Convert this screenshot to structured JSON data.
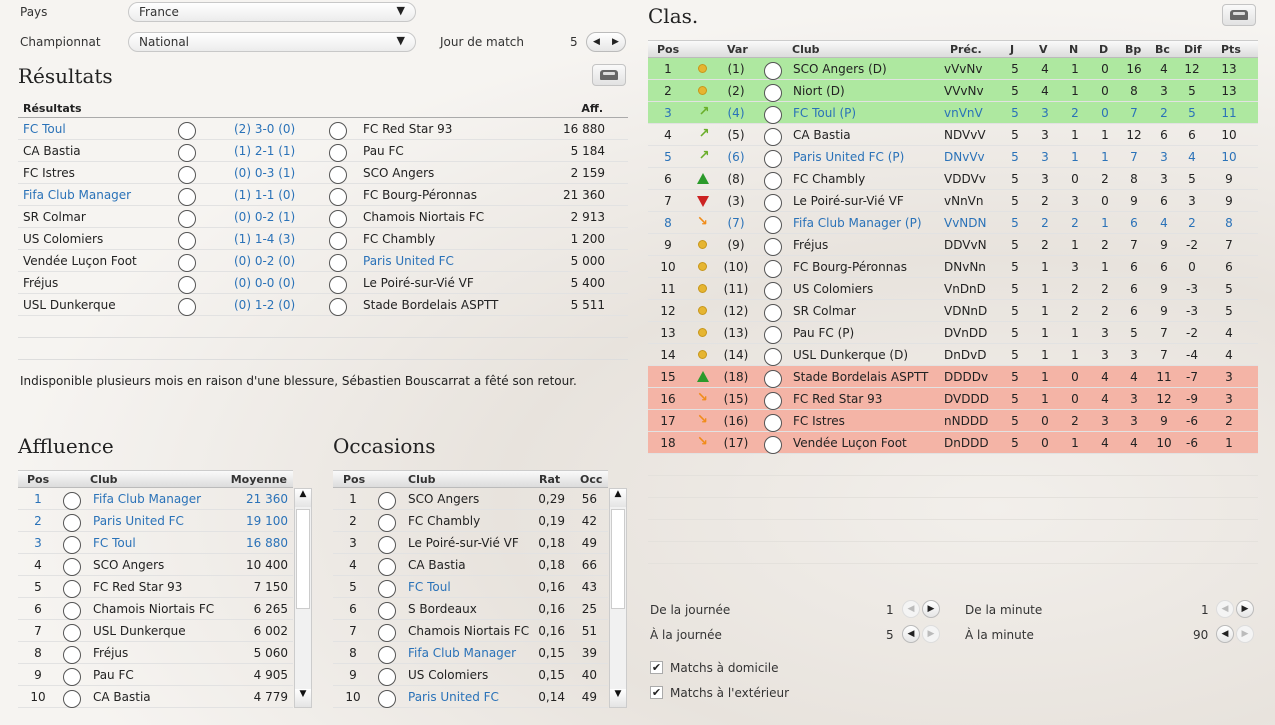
{
  "filters": {
    "country_label": "Pays",
    "country_value": "France",
    "league_label": "Championnat",
    "league_value": "National",
    "matchday_label": "Jour de match",
    "matchday_value": "5"
  },
  "results": {
    "title": "Résultats",
    "header_label": "Résultats",
    "header_att": "Aff.",
    "rows": [
      {
        "home": "FC Toul",
        "home_link": true,
        "score": "(2) 3-0 (0)",
        "away": "FC Red Star 93",
        "away_link": false,
        "att": "16 880"
      },
      {
        "home": "CA Bastia",
        "home_link": false,
        "score": "(1) 2-1 (1)",
        "away": "Pau FC",
        "away_link": false,
        "att": "5 184"
      },
      {
        "home": "FC Istres",
        "home_link": false,
        "score": "(0) 0-3 (1)",
        "away": "SCO Angers",
        "away_link": false,
        "att": "2 159"
      },
      {
        "home": "Fifa Club Manager",
        "home_link": true,
        "score": "(1) 1-1 (0)",
        "away": "FC Bourg-Péronnas",
        "away_link": false,
        "att": "21 360"
      },
      {
        "home": "SR Colmar",
        "home_link": false,
        "score": "(0) 0-2 (1)",
        "away": "Chamois Niortais FC",
        "away_link": false,
        "att": "2 913"
      },
      {
        "home": "US Colomiers",
        "home_link": false,
        "score": "(1) 1-4 (3)",
        "away": "FC Chambly",
        "away_link": false,
        "att": "1 200"
      },
      {
        "home": "Vendée Luçon Foot",
        "home_link": false,
        "score": "(0) 0-2 (0)",
        "away": "Paris United FC",
        "away_link": true,
        "att": "5 000"
      },
      {
        "home": "Fréjus",
        "home_link": false,
        "score": "(0) 0-0 (0)",
        "away": "Le Poiré-sur-Vié VF",
        "away_link": false,
        "att": "5 400"
      },
      {
        "home": "USL Dunkerque",
        "home_link": false,
        "score": "(0) 1-2 (0)",
        "away": "Stade Bordelais ASPTT",
        "away_link": false,
        "att": "5 511"
      }
    ]
  },
  "news": "Indisponible plusieurs mois en raison d'une blessure, Sébastien Bouscarrat a fêté son retour.",
  "attendance": {
    "title": "Affluence",
    "headers": {
      "pos": "Pos",
      "club": "Club",
      "avg": "Moyenne"
    },
    "rows": [
      {
        "pos": "1",
        "club": "Fifa Club Manager",
        "val": "21 360",
        "link": true
      },
      {
        "pos": "2",
        "club": "Paris United FC",
        "val": "19 100",
        "link": true
      },
      {
        "pos": "3",
        "club": "FC Toul",
        "val": "16 880",
        "link": true
      },
      {
        "pos": "4",
        "club": "SCO Angers",
        "val": "10 400",
        "link": false
      },
      {
        "pos": "5",
        "club": "FC Red Star 93",
        "val": "7 150",
        "link": false
      },
      {
        "pos": "6",
        "club": "Chamois Niortais FC",
        "val": "6 265",
        "link": false
      },
      {
        "pos": "7",
        "club": "USL Dunkerque",
        "val": "6 002",
        "link": false
      },
      {
        "pos": "8",
        "club": "Fréjus",
        "val": "5 060",
        "link": false
      },
      {
        "pos": "9",
        "club": "Pau FC",
        "val": "4 905",
        "link": false
      },
      {
        "pos": "10",
        "club": "CA Bastia",
        "val": "4 779",
        "link": false
      }
    ]
  },
  "chances": {
    "title": "Occasions",
    "headers": {
      "pos": "Pos",
      "club": "Club",
      "rat": "Rat",
      "occ": "Occ"
    },
    "rows": [
      {
        "pos": "1",
        "club": "SCO Angers",
        "rat": "0,29",
        "occ": "56",
        "link": false
      },
      {
        "pos": "2",
        "club": "FC Chambly",
        "rat": "0,19",
        "occ": "42",
        "link": false
      },
      {
        "pos": "3",
        "club": "Le Poiré-sur-Vié VF",
        "rat": "0,18",
        "occ": "49",
        "link": false
      },
      {
        "pos": "4",
        "club": "CA Bastia",
        "rat": "0,18",
        "occ": "66",
        "link": false
      },
      {
        "pos": "5",
        "club": "FC Toul",
        "rat": "0,16",
        "occ": "43",
        "link": true
      },
      {
        "pos": "6",
        "club": "S Bordeaux",
        "rat": "0,16",
        "occ": "25",
        "link": false
      },
      {
        "pos": "7",
        "club": "Chamois Niortais FC",
        "rat": "0,16",
        "occ": "51",
        "link": false
      },
      {
        "pos": "8",
        "club": "Fifa Club Manager",
        "rat": "0,15",
        "occ": "39",
        "link": true
      },
      {
        "pos": "9",
        "club": "US Colomiers",
        "rat": "0,15",
        "occ": "40",
        "link": false
      },
      {
        "pos": "10",
        "club": "Paris United FC",
        "rat": "0,14",
        "occ": "49",
        "link": true
      }
    ]
  },
  "standings": {
    "title": "Clas.",
    "headers": {
      "pos": "Pos",
      "var": "Var",
      "club": "Club",
      "prec": "Préc.",
      "j": "J",
      "v": "V",
      "n": "N",
      "d": "D",
      "bp": "Bp",
      "bc": "Bc",
      "dif": "Dif",
      "pts": "Pts"
    },
    "colors": {
      "promo": "#aee8a0",
      "releg": "#f4b4a6",
      "link": "#2a72b8"
    },
    "rows": [
      {
        "pos": "1",
        "trend": "dot",
        "var": "(1)",
        "club": "SCO Angers  (D)",
        "prec": "vVvNv",
        "j": "5",
        "v": "4",
        "n": "1",
        "d": "0",
        "bp": "16",
        "bc": "4",
        "dif": "12",
        "pts": "13",
        "zone": "promo",
        "link": false
      },
      {
        "pos": "2",
        "trend": "dot",
        "var": "(2)",
        "club": "Niort  (D)",
        "prec": "VVvNv",
        "j": "5",
        "v": "4",
        "n": "1",
        "d": "0",
        "bp": "8",
        "bc": "3",
        "dif": "5",
        "pts": "13",
        "zone": "promo",
        "link": false
      },
      {
        "pos": "3",
        "trend": "diag-up",
        "var": "(4)",
        "club": "FC Toul  (P)",
        "prec": "vnVnV",
        "j": "5",
        "v": "3",
        "n": "2",
        "d": "0",
        "bp": "7",
        "bc": "2",
        "dif": "5",
        "pts": "11",
        "zone": "promo",
        "link": true
      },
      {
        "pos": "4",
        "trend": "diag-up",
        "var": "(5)",
        "club": "CA Bastia",
        "prec": "NDVvV",
        "j": "5",
        "v": "3",
        "n": "1",
        "d": "1",
        "bp": "12",
        "bc": "6",
        "dif": "6",
        "pts": "10",
        "zone": "",
        "link": false
      },
      {
        "pos": "5",
        "trend": "diag-up",
        "var": "(6)",
        "club": "Paris United FC  (P)",
        "prec": "DNvVv",
        "j": "5",
        "v": "3",
        "n": "1",
        "d": "1",
        "bp": "7",
        "bc": "3",
        "dif": "4",
        "pts": "10",
        "zone": "",
        "link": true
      },
      {
        "pos": "6",
        "trend": "up",
        "var": "(8)",
        "club": "FC Chambly",
        "prec": "VDDVv",
        "j": "5",
        "v": "3",
        "n": "0",
        "d": "2",
        "bp": "8",
        "bc": "3",
        "dif": "5",
        "pts": "9",
        "zone": "",
        "link": false
      },
      {
        "pos": "7",
        "trend": "down",
        "var": "(3)",
        "club": "Le Poiré-sur-Vié VF",
        "prec": "vNnVn",
        "j": "5",
        "v": "2",
        "n": "3",
        "d": "0",
        "bp": "9",
        "bc": "6",
        "dif": "3",
        "pts": "9",
        "zone": "",
        "link": false
      },
      {
        "pos": "8",
        "trend": "diag-down",
        "var": "(7)",
        "club": "Fifa Club Manager  (P)",
        "prec": "VvNDN",
        "j": "5",
        "v": "2",
        "n": "2",
        "d": "1",
        "bp": "6",
        "bc": "4",
        "dif": "2",
        "pts": "8",
        "zone": "",
        "link": true
      },
      {
        "pos": "9",
        "trend": "dot",
        "var": "(9)",
        "club": "Fréjus",
        "prec": "DDVvN",
        "j": "5",
        "v": "2",
        "n": "1",
        "d": "2",
        "bp": "7",
        "bc": "9",
        "dif": "-2",
        "pts": "7",
        "zone": "",
        "link": false
      },
      {
        "pos": "10",
        "trend": "dot",
        "var": "(10)",
        "club": "FC Bourg-Péronnas",
        "prec": "DNvNn",
        "j": "5",
        "v": "1",
        "n": "3",
        "d": "1",
        "bp": "6",
        "bc": "6",
        "dif": "0",
        "pts": "6",
        "zone": "",
        "link": false
      },
      {
        "pos": "11",
        "trend": "dot",
        "var": "(11)",
        "club": "US Colomiers",
        "prec": "VnDnD",
        "j": "5",
        "v": "1",
        "n": "2",
        "d": "2",
        "bp": "6",
        "bc": "9",
        "dif": "-3",
        "pts": "5",
        "zone": "",
        "link": false
      },
      {
        "pos": "12",
        "trend": "dot",
        "var": "(12)",
        "club": "SR Colmar",
        "prec": "VDNnD",
        "j": "5",
        "v": "1",
        "n": "2",
        "d": "2",
        "bp": "6",
        "bc": "9",
        "dif": "-3",
        "pts": "5",
        "zone": "",
        "link": false
      },
      {
        "pos": "13",
        "trend": "dot",
        "var": "(13)",
        "club": "Pau FC  (P)",
        "prec": "DVnDD",
        "j": "5",
        "v": "1",
        "n": "1",
        "d": "3",
        "bp": "5",
        "bc": "7",
        "dif": "-2",
        "pts": "4",
        "zone": "",
        "link": false
      },
      {
        "pos": "14",
        "trend": "dot",
        "var": "(14)",
        "club": "USL Dunkerque  (D)",
        "prec": "DnDvD",
        "j": "5",
        "v": "1",
        "n": "1",
        "d": "3",
        "bp": "3",
        "bc": "7",
        "dif": "-4",
        "pts": "4",
        "zone": "",
        "link": false
      },
      {
        "pos": "15",
        "trend": "up",
        "var": "(18)",
        "club": "Stade Bordelais ASPTT",
        "prec": "DDDDv",
        "j": "5",
        "v": "1",
        "n": "0",
        "d": "4",
        "bp": "4",
        "bc": "11",
        "dif": "-7",
        "pts": "3",
        "zone": "releg",
        "link": false
      },
      {
        "pos": "16",
        "trend": "diag-down",
        "var": "(15)",
        "club": "FC Red Star 93",
        "prec": "DVDDD",
        "j": "5",
        "v": "1",
        "n": "0",
        "d": "4",
        "bp": "3",
        "bc": "12",
        "dif": "-9",
        "pts": "3",
        "zone": "releg",
        "link": false
      },
      {
        "pos": "17",
        "trend": "diag-down",
        "var": "(16)",
        "club": "FC Istres",
        "prec": "nNDDD",
        "j": "5",
        "v": "0",
        "n": "2",
        "d": "3",
        "bp": "3",
        "bc": "9",
        "dif": "-6",
        "pts": "2",
        "zone": "releg",
        "link": false
      },
      {
        "pos": "18",
        "trend": "diag-down",
        "var": "(17)",
        "club": "Vendée Luçon Foot",
        "prec": "DnDDD",
        "j": "5",
        "v": "0",
        "n": "1",
        "d": "4",
        "bp": "4",
        "bc": "10",
        "dif": "-6",
        "pts": "1",
        "zone": "releg",
        "link": false
      }
    ]
  },
  "range": {
    "from_day_label": "De la journée",
    "from_day": "1",
    "to_day_label": "À la journée",
    "to_day": "5",
    "from_min_label": "De la minute",
    "from_min": "1",
    "to_min_label": "À la minute",
    "to_min": "90",
    "home_label": "Matchs à domicile",
    "away_label": "Matchs à l'extérieur",
    "home_checked": true,
    "away_checked": true
  }
}
